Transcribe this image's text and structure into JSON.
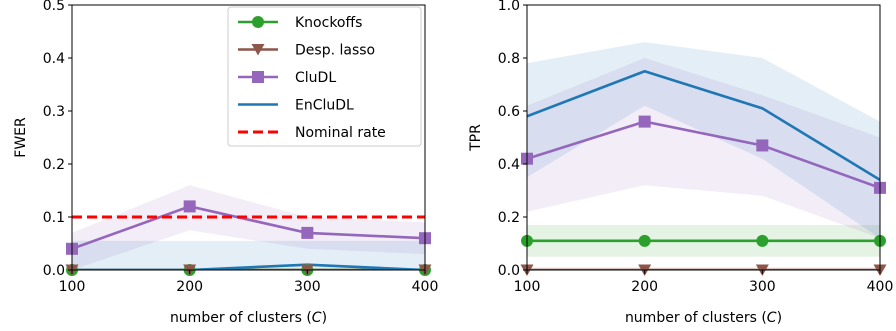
{
  "chart_data": [
    {
      "type": "line",
      "x": [
        100,
        200,
        300,
        400
      ],
      "xlabel": "number of clusters (",
      "xlabel_var": "C",
      "xlabel_close": ")",
      "ylabel": "FWER",
      "xlim": [
        100,
        400
      ],
      "ylim": [
        0,
        0.5
      ],
      "xticks": [
        "100",
        "200",
        "300",
        "400"
      ],
      "yticks": [
        0.0,
        0.1,
        0.2,
        0.3,
        0.4,
        0.5
      ],
      "ytick_labels": [
        "0.0",
        "0.1",
        "0.2",
        "0.3",
        "0.4",
        "0.5"
      ],
      "grid": false,
      "legend_position": "top-right",
      "series": [
        {
          "name": "Knockoffs",
          "color": "#2ca02c",
          "marker": "circle",
          "values": [
            0.0,
            0.0,
            0.0,
            0.0
          ],
          "band": [
            [
              0.0,
              0.0
            ],
            [
              0.0,
              0.0
            ],
            [
              0.0,
              0.0
            ],
            [
              0.0,
              0.0
            ]
          ]
        },
        {
          "name": "Desp. lasso",
          "color": "#8c564b",
          "marker": "triangle-down",
          "values": [
            0.0,
            0.0,
            0.0,
            0.0
          ],
          "band": [
            [
              0.0,
              0.0
            ],
            [
              0.0,
              0.0
            ],
            [
              0.0,
              0.0
            ],
            [
              0.0,
              0.0
            ]
          ]
        },
        {
          "name": "CluDL",
          "color": "#9467bd",
          "marker": "square",
          "values": [
            0.04,
            0.12,
            0.07,
            0.06
          ],
          "band": [
            [
              0.0,
              0.07
            ],
            [
              0.075,
              0.16
            ],
            [
              0.04,
              0.1
            ],
            [
              0.03,
              0.09
            ]
          ]
        },
        {
          "name": "EnCluDL",
          "color": "#1f77b4",
          "marker": "none",
          "values": [
            0.0,
            0.0,
            0.01,
            0.0
          ],
          "band": [
            [
              0.0,
              0.055
            ],
            [
              0.0,
              0.055
            ],
            [
              0.0,
              0.055
            ],
            [
              0.0,
              0.055
            ]
          ]
        },
        {
          "name": "Nominal rate",
          "color": "#ff0000",
          "marker": "none",
          "dashed": true,
          "values": [
            0.1,
            0.1,
            0.1,
            0.1
          ]
        }
      ]
    },
    {
      "type": "line",
      "x": [
        100,
        200,
        300,
        400
      ],
      "xlabel": "number of clusters (",
      "xlabel_var": "C",
      "xlabel_close": ")",
      "ylabel": "TPR",
      "xlim": [
        100,
        400
      ],
      "ylim": [
        0,
        1.0
      ],
      "xticks": [
        "100",
        "200",
        "300",
        "400"
      ],
      "yticks": [
        0.0,
        0.2,
        0.4,
        0.6,
        0.8,
        1.0
      ],
      "ytick_labels": [
        "0.0",
        "0.2",
        "0.4",
        "0.6",
        "0.8",
        "1.0"
      ],
      "grid": false,
      "series": [
        {
          "name": "Knockoffs",
          "color": "#2ca02c",
          "marker": "circle",
          "values": [
            0.11,
            0.11,
            0.11,
            0.11
          ],
          "band": [
            [
              0.05,
              0.17
            ],
            [
              0.05,
              0.17
            ],
            [
              0.05,
              0.17
            ],
            [
              0.05,
              0.17
            ]
          ]
        },
        {
          "name": "Desp. lasso",
          "color": "#8c564b",
          "marker": "triangle-down",
          "values": [
            0.0,
            0.0,
            0.0,
            0.0
          ],
          "band": [
            [
              0.0,
              0.01
            ],
            [
              0.0,
              0.01
            ],
            [
              0.0,
              0.01
            ],
            [
              0.0,
              0.01
            ]
          ]
        },
        {
          "name": "CluDL",
          "color": "#9467bd",
          "marker": "square",
          "values": [
            0.42,
            0.56,
            0.47,
            0.31
          ],
          "band": [
            [
              0.22,
              0.62
            ],
            [
              0.32,
              0.8
            ],
            [
              0.28,
              0.66
            ],
            [
              0.12,
              0.5
            ]
          ]
        },
        {
          "name": "EnCluDL",
          "color": "#1f77b4",
          "marker": "none",
          "values": [
            0.58,
            0.75,
            0.61,
            0.34
          ],
          "band": [
            [
              0.35,
              0.78
            ],
            [
              0.62,
              0.86
            ],
            [
              0.42,
              0.8
            ],
            [
              0.12,
              0.56
            ]
          ]
        }
      ]
    }
  ]
}
